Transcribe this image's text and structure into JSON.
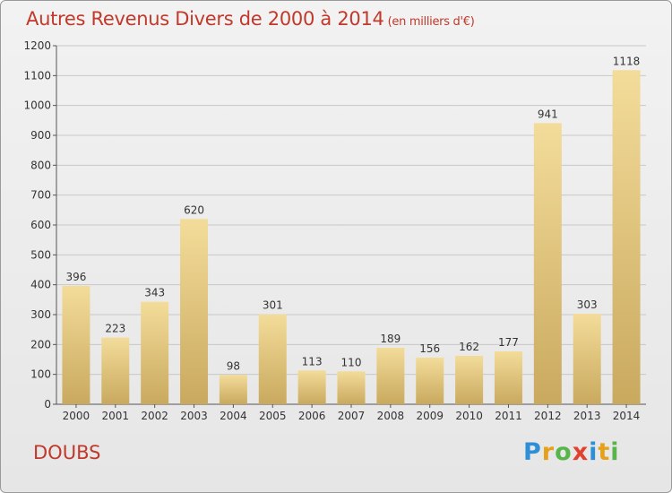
{
  "title": "Autres Revenus Divers de 2000 à 2014",
  "subtitle": "(en milliers d'€)",
  "region": "DOUBS",
  "logo": "Proxiti",
  "colors": {
    "title": "#c0392b",
    "bar_light": "#f3dc9a",
    "bar_dark": "#c9a95e",
    "grid": "#c8c8c8"
  },
  "chart_data": {
    "type": "bar",
    "categories": [
      "2000",
      "2001",
      "2002",
      "2003",
      "2004",
      "2005",
      "2006",
      "2007",
      "2008",
      "2009",
      "2010",
      "2011",
      "2012",
      "2013",
      "2014"
    ],
    "values": [
      396,
      223,
      343,
      620,
      98,
      301,
      113,
      110,
      189,
      156,
      162,
      177,
      941,
      303,
      1118
    ],
    "ylim": [
      0,
      1200
    ],
    "yticks": [
      0,
      100,
      200,
      300,
      400,
      500,
      600,
      700,
      800,
      900,
      1000,
      1100,
      1200
    ],
    "grid": true,
    "title": "Autres Revenus Divers de 2000 à 2014",
    "xlabel": "",
    "ylabel": ""
  }
}
